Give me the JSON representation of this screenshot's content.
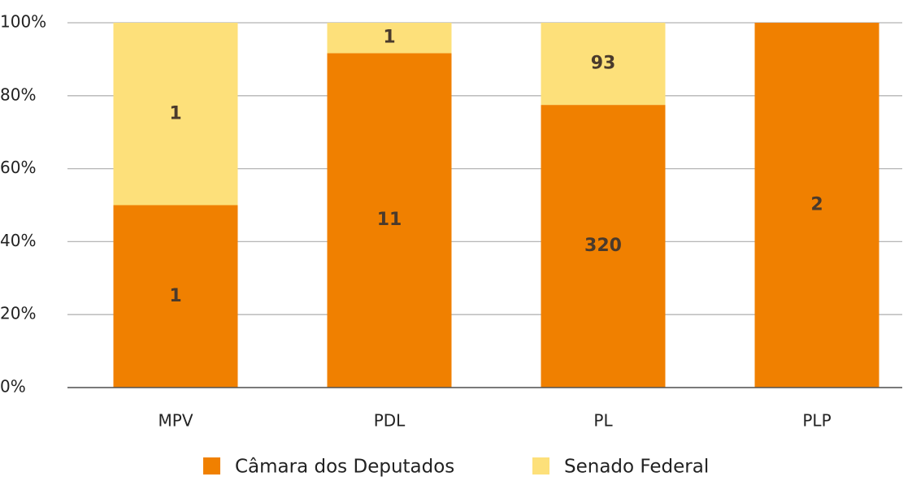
{
  "chart_data": {
    "type": "bar",
    "stacking": "percent",
    "categories": [
      "MPV",
      "PDL",
      "PL",
      "PLP"
    ],
    "series": [
      {
        "name": "Câmara dos Deputados",
        "color": "#f08000",
        "values": [
          1,
          11,
          320,
          2
        ]
      },
      {
        "name": "Senado Federal",
        "color": "#fde07a",
        "values": [
          1,
          1,
          93,
          0
        ]
      }
    ],
    "ylim": [
      0,
      100
    ],
    "yticks": [
      {
        "value": 0,
        "label": "0%"
      },
      {
        "value": 20,
        "label": "20%"
      },
      {
        "value": 40,
        "label": "40%"
      },
      {
        "value": 60,
        "label": "60%"
      },
      {
        "value": 80,
        "label": "80%"
      },
      {
        "value": 100,
        "label": "100%"
      }
    ],
    "grid": true,
    "legend": "bottom"
  }
}
